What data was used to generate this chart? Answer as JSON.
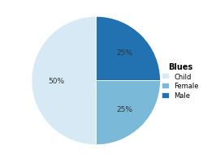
{
  "title": "Blues",
  "slices": [
    {
      "label": "Male",
      "value": 25,
      "color": "#2272b2"
    },
    {
      "label": "Female",
      "value": 25,
      "color": "#7ab9d8"
    },
    {
      "label": "Child",
      "value": 50,
      "color": "#d6e9f5"
    }
  ],
  "text_color": "#333333",
  "background_color": "#ffffff",
  "startangle": 90,
  "pct_fontsize": 6.5,
  "pct_distance": 0.62
}
